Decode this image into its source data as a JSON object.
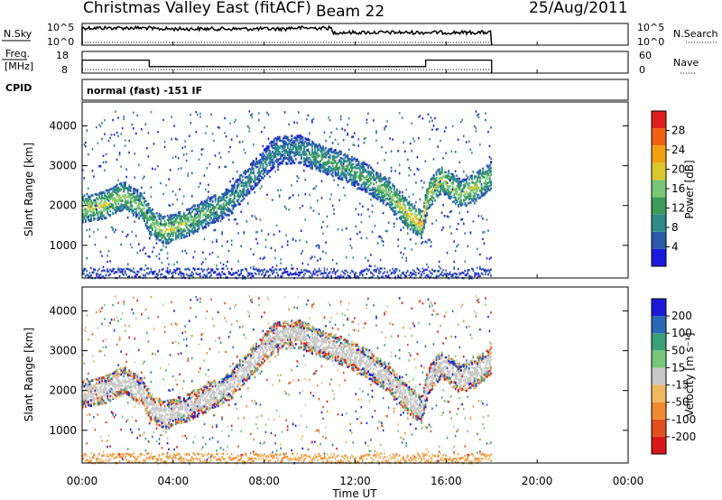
{
  "header": {
    "title": "Christmas Valley East (fitACF)",
    "beam": "Beam 22",
    "date": "25/Aug/2011"
  },
  "aux_panels": {
    "nsky_label": "N.Sky",
    "nsky_ticks": [
      "10^5",
      "10^0"
    ],
    "nsearch_label": "N.Search",
    "nsearch_ticks": [
      "10^5",
      "10^0"
    ],
    "freq_label_1": "Freq.",
    "freq_label_2": "[MHz]",
    "freq_ticks": [
      "18",
      "8"
    ],
    "nave_label": "Nave",
    "nave_ticks": [
      "60",
      "0"
    ],
    "cpid_label": "CPID",
    "cpid_text": "normal (fast) -151 IF"
  },
  "x_axis": {
    "label": "Time UT",
    "tick_labels": [
      "00:00",
      "04:00",
      "08:00",
      "12:00",
      "16:00",
      "20:00",
      "00:00"
    ],
    "range_hours": [
      0,
      24
    ]
  },
  "power_panel": {
    "ylabel": "Slant Range [km]",
    "y_ticks": [
      "1000",
      "2000",
      "3000",
      "4000"
    ],
    "colorbar_label": "Power [dB]",
    "colorbar_ticks": [
      "4",
      "8",
      "12",
      "16",
      "20",
      "24",
      "28"
    ]
  },
  "velocity_panel": {
    "ylabel": "Slant Range [km]",
    "y_ticks": [
      "1000",
      "2000",
      "3000",
      "4000"
    ],
    "colorbar_label": "Velocity [m s⁻¹]",
    "colorbar_ticks": [
      "200",
      "100",
      "50",
      "15",
      "-15",
      "-50",
      "-100",
      "-200"
    ]
  },
  "chart_data": {
    "type": "heatmap",
    "x_unit": "hours UT",
    "y_unit": "km",
    "xlim": [
      0,
      24
    ],
    "ylim": [
      180,
      4600
    ],
    "data_end_hour": 18,
    "frequency_mhz_segments": [
      {
        "start": 0,
        "end": 2.95,
        "value": 14
      },
      {
        "start": 2.95,
        "end": 15.1,
        "value": 11
      },
      {
        "start": 15.1,
        "end": 18,
        "value": 14
      }
    ],
    "nave_approx": 10,
    "main_scatter_band_km": [
      {
        "t": 0.0,
        "r": 1950,
        "p": 18
      },
      {
        "t": 1.0,
        "r": 2050,
        "p": 18
      },
      {
        "t": 1.8,
        "r": 2280,
        "p": 16
      },
      {
        "t": 2.6,
        "r": 2000,
        "p": 14
      },
      {
        "t": 3.0,
        "r": 1600,
        "p": 14
      },
      {
        "t": 3.6,
        "r": 1400,
        "p": 18
      },
      {
        "t": 4.5,
        "r": 1580,
        "p": 16
      },
      {
        "t": 5.5,
        "r": 1850,
        "p": 12
      },
      {
        "t": 6.5,
        "r": 2150,
        "p": 10
      },
      {
        "t": 7.5,
        "r": 2800,
        "p": 8
      },
      {
        "t": 8.5,
        "r": 3400,
        "p": 8
      },
      {
        "t": 9.5,
        "r": 3450,
        "p": 8
      },
      {
        "t": 10.5,
        "r": 3200,
        "p": 12
      },
      {
        "t": 11.5,
        "r": 3000,
        "p": 12
      },
      {
        "t": 12.5,
        "r": 2700,
        "p": 12
      },
      {
        "t": 13.5,
        "r": 2300,
        "p": 16
      },
      {
        "t": 14.3,
        "r": 1800,
        "p": 20
      },
      {
        "t": 14.9,
        "r": 1550,
        "p": 22
      },
      {
        "t": 15.2,
        "r": 2300,
        "p": 18
      },
      {
        "t": 15.8,
        "r": 2700,
        "p": 18
      },
      {
        "t": 16.6,
        "r": 2300,
        "p": 16
      },
      {
        "t": 17.3,
        "r": 2500,
        "p": 18
      },
      {
        "t": 18.0,
        "r": 2800,
        "p": 12
      }
    ],
    "colors": {
      "power_scale": [
        "#1a1adc",
        "#2a5aa8",
        "#2f8a8a",
        "#3e9a5a",
        "#78c878",
        "#d8c82a",
        "#f0a010",
        "#f06010",
        "#dc2020"
      ],
      "velocity_scale": [
        "#1a1ad6",
        "#2a6ab4",
        "#3aa07a",
        "#78c878",
        "#c8c8c8",
        "#f0b860",
        "#f08a30",
        "#e05020",
        "#d81818"
      ]
    }
  }
}
